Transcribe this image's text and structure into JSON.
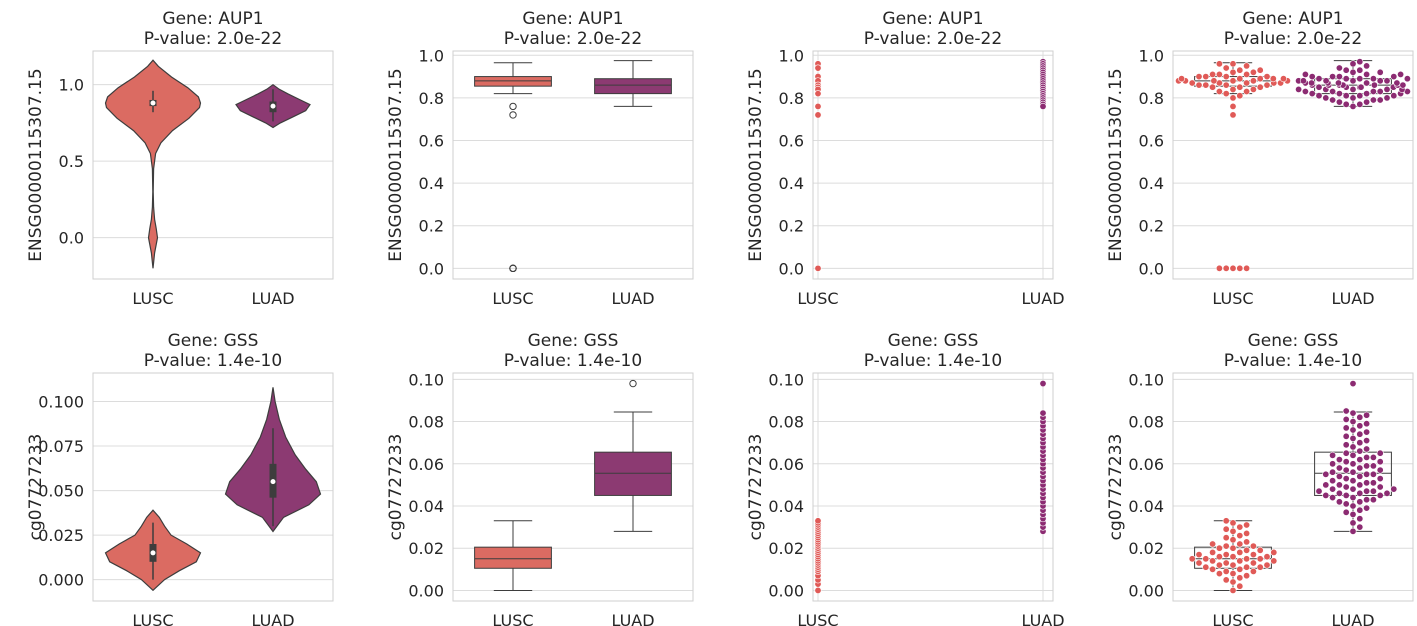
{
  "chart_data": [
    {
      "type": "violin",
      "title": [
        "Gene: AUP1",
        "P-value: 2.0e-22"
      ],
      "ylabel": "ENSG00000115307.15",
      "categories": [
        "LUSC",
        "LUAD"
      ],
      "ylim": [
        -0.27,
        1.22
      ],
      "yticks": [
        0.0,
        0.5,
        1.0
      ],
      "ytick_labels": [
        "0.0",
        "0.5",
        "1.0"
      ],
      "violins": [
        {
          "name": "LUSC",
          "color": "#db6b62",
          "box": [
            0.86,
            0.9
          ],
          "whisker": [
            0.82,
            0.96
          ],
          "median": 0.88,
          "profile": [
            [
              -0.2,
              0.0
            ],
            [
              -0.1,
              0.03
            ],
            [
              0.0,
              0.085
            ],
            [
              0.06,
              0.06
            ],
            [
              0.12,
              0.03
            ],
            [
              0.2,
              0.012
            ],
            [
              0.3,
              0.004
            ],
            [
              0.45,
              0.012
            ],
            [
              0.55,
              0.05
            ],
            [
              0.62,
              0.15
            ],
            [
              0.7,
              0.37
            ],
            [
              0.78,
              0.68
            ],
            [
              0.85,
              0.88
            ],
            [
              0.88,
              0.9
            ],
            [
              0.92,
              0.86
            ],
            [
              0.98,
              0.66
            ],
            [
              1.05,
              0.35
            ],
            [
              1.12,
              0.1
            ],
            [
              1.16,
              0.0
            ]
          ]
        },
        {
          "name": "LUAD",
          "color": "#8c3a72",
          "box": [
            0.82,
            0.89
          ],
          "whisker": [
            0.76,
            0.97
          ],
          "median": 0.86,
          "profile": [
            [
              0.72,
              0.0
            ],
            [
              0.75,
              0.14
            ],
            [
              0.79,
              0.38
            ],
            [
              0.83,
              0.62
            ],
            [
              0.87,
              0.7
            ],
            [
              0.9,
              0.52
            ],
            [
              0.94,
              0.28
            ],
            [
              0.97,
              0.12
            ],
            [
              1.0,
              0.0
            ]
          ]
        }
      ]
    },
    {
      "type": "box",
      "title": [
        "Gene: AUP1",
        "P-value: 2.0e-22"
      ],
      "ylabel": "ENSG00000115307.15",
      "categories": [
        "LUSC",
        "LUAD"
      ],
      "ylim": [
        -0.05,
        1.02
      ],
      "yticks": [
        0.0,
        0.2,
        0.4,
        0.6,
        0.8,
        1.0
      ],
      "ytick_labels": [
        "0.0",
        "0.2",
        "0.4",
        "0.6",
        "0.8",
        "1.0"
      ],
      "boxes": [
        {
          "name": "LUSC",
          "color": "#db6b62",
          "q1": 0.855,
          "median": 0.88,
          "q3": 0.9,
          "whisker": [
            0.82,
            0.965
          ],
          "outliers": [
            0.76,
            0.72,
            0.0,
            0.0,
            0.0
          ]
        },
        {
          "name": "LUAD",
          "color": "#8c3a72",
          "q1": 0.82,
          "median": 0.86,
          "q3": 0.89,
          "whisker": [
            0.76,
            0.975
          ],
          "outliers": []
        }
      ]
    },
    {
      "type": "strip",
      "title": [
        "Gene: AUP1",
        "P-value: 2.0e-22"
      ],
      "ylabel": "ENSG00000115307.15",
      "categories": [
        "LUSC",
        "LUAD"
      ],
      "ylim": [
        -0.05,
        1.02
      ],
      "yticks": [
        0.0,
        0.2,
        0.4,
        0.6,
        0.8,
        1.0
      ],
      "ytick_labels": [
        "0.0",
        "0.2",
        "0.4",
        "0.6",
        "0.8",
        "1.0"
      ],
      "groups": [
        {
          "name": "LUSC",
          "color": "#e05a57",
          "values": [
            0.96,
            0.94,
            0.9,
            0.88,
            0.86,
            0.85,
            0.84,
            0.82,
            0.76,
            0.72,
            0.0
          ]
        },
        {
          "name": "LUAD",
          "color": "#8c2b72",
          "values": [
            0.97,
            0.96,
            0.95,
            0.94,
            0.93,
            0.92,
            0.91,
            0.9,
            0.89,
            0.88,
            0.87,
            0.86,
            0.85,
            0.84,
            0.83,
            0.82,
            0.81,
            0.8,
            0.79,
            0.78,
            0.77,
            0.76
          ]
        }
      ]
    },
    {
      "type": "swarm-box",
      "title": [
        "Gene: AUP1",
        "P-value: 2.0e-22"
      ],
      "ylabel": "ENSG00000115307.15",
      "categories": [
        "LUSC",
        "LUAD"
      ],
      "ylim": [
        -0.05,
        1.02
      ],
      "yticks": [
        0.0,
        0.2,
        0.4,
        0.6,
        0.8,
        1.0
      ],
      "ytick_labels": [
        "0.0",
        "0.2",
        "0.4",
        "0.6",
        "0.8",
        "1.0"
      ],
      "boxes": [
        {
          "name": "LUSC",
          "q1": 0.855,
          "median": 0.88,
          "q3": 0.9,
          "whisker": [
            0.82,
            0.965
          ]
        },
        {
          "name": "LUAD",
          "q1": 0.82,
          "median": 0.86,
          "q3": 0.89,
          "whisker": [
            0.76,
            0.975
          ]
        }
      ],
      "groups": [
        {
          "name": "LUSC",
          "color": "#e05a57",
          "values": [
            0.0,
            0.0,
            0.0,
            0.0,
            0.0,
            0.72,
            0.76,
            0.8,
            0.81,
            0.82,
            0.83,
            0.83,
            0.84,
            0.84,
            0.85,
            0.85,
            0.85,
            0.86,
            0.86,
            0.86,
            0.86,
            0.87,
            0.87,
            0.87,
            0.87,
            0.87,
            0.88,
            0.88,
            0.88,
            0.88,
            0.88,
            0.88,
            0.89,
            0.89,
            0.89,
            0.89,
            0.89,
            0.9,
            0.9,
            0.9,
            0.9,
            0.91,
            0.91,
            0.91,
            0.92,
            0.92,
            0.93,
            0.93,
            0.94,
            0.95,
            0.96,
            0.96
          ]
        },
        {
          "name": "LUAD",
          "color": "#8c2b72",
          "values": [
            0.76,
            0.77,
            0.77,
            0.78,
            0.78,
            0.79,
            0.79,
            0.79,
            0.8,
            0.8,
            0.8,
            0.81,
            0.81,
            0.81,
            0.81,
            0.82,
            0.82,
            0.82,
            0.82,
            0.83,
            0.83,
            0.83,
            0.83,
            0.83,
            0.84,
            0.84,
            0.84,
            0.84,
            0.84,
            0.85,
            0.85,
            0.85,
            0.85,
            0.85,
            0.85,
            0.86,
            0.86,
            0.86,
            0.86,
            0.86,
            0.86,
            0.86,
            0.87,
            0.87,
            0.87,
            0.87,
            0.87,
            0.87,
            0.88,
            0.88,
            0.88,
            0.88,
            0.88,
            0.88,
            0.89,
            0.89,
            0.89,
            0.89,
            0.89,
            0.9,
            0.9,
            0.9,
            0.9,
            0.91,
            0.91,
            0.91,
            0.92,
            0.92,
            0.93,
            0.93,
            0.94,
            0.95,
            0.96,
            0.97
          ]
        }
      ]
    },
    {
      "type": "violin",
      "title": [
        "Gene: GSS",
        "P-value: 1.4e-10"
      ],
      "ylabel": "cg07727233",
      "categories": [
        "LUSC",
        "LUAD"
      ],
      "ylim": [
        -0.012,
        0.116
      ],
      "yticks": [
        0.0,
        0.025,
        0.05,
        0.075,
        0.1
      ],
      "ytick_labels": [
        "0.000",
        "0.025",
        "0.050",
        "0.075",
        "0.100"
      ],
      "violins": [
        {
          "name": "LUSC",
          "color": "#db6b62",
          "box": [
            0.01,
            0.02
          ],
          "whisker": [
            0.0,
            0.032
          ],
          "median": 0.015,
          "profile": [
            [
              -0.006,
              0.0
            ],
            [
              0.0,
              0.22
            ],
            [
              0.005,
              0.5
            ],
            [
              0.01,
              0.82
            ],
            [
              0.015,
              0.9
            ],
            [
              0.02,
              0.64
            ],
            [
              0.025,
              0.34
            ],
            [
              0.03,
              0.22
            ],
            [
              0.035,
              0.12
            ],
            [
              0.039,
              0.0
            ]
          ]
        },
        {
          "name": "LUAD",
          "color": "#8c3a72",
          "box": [
            0.046,
            0.065
          ],
          "whisker": [
            0.03,
            0.085
          ],
          "median": 0.055,
          "profile": [
            [
              0.027,
              0.0
            ],
            [
              0.035,
              0.2
            ],
            [
              0.042,
              0.68
            ],
            [
              0.048,
              0.9
            ],
            [
              0.055,
              0.82
            ],
            [
              0.062,
              0.62
            ],
            [
              0.07,
              0.42
            ],
            [
              0.08,
              0.24
            ],
            [
              0.09,
              0.12
            ],
            [
              0.1,
              0.04
            ],
            [
              0.108,
              0.0
            ]
          ]
        }
      ]
    },
    {
      "type": "box",
      "title": [
        "Gene: GSS",
        "P-value: 1.4e-10"
      ],
      "ylabel": "cg07727233",
      "categories": [
        "LUSC",
        "LUAD"
      ],
      "ylim": [
        -0.005,
        0.103
      ],
      "yticks": [
        0.0,
        0.02,
        0.04,
        0.06,
        0.08,
        0.1
      ],
      "ytick_labels": [
        "0.00",
        "0.02",
        "0.04",
        "0.06",
        "0.08",
        "0.10"
      ],
      "boxes": [
        {
          "name": "LUSC",
          "color": "#db6b62",
          "q1": 0.0105,
          "median": 0.015,
          "q3": 0.0205,
          "whisker": [
            0.0,
            0.033
          ],
          "outliers": []
        },
        {
          "name": "LUAD",
          "color": "#8c3a72",
          "q1": 0.045,
          "median": 0.0555,
          "q3": 0.0655,
          "whisker": [
            0.028,
            0.0845
          ],
          "outliers": [
            0.098
          ]
        }
      ]
    },
    {
      "type": "strip",
      "title": [
        "Gene: GSS",
        "P-value: 1.4e-10"
      ],
      "ylabel": "cg07727233",
      "categories": [
        "LUSC",
        "LUAD"
      ],
      "ylim": [
        -0.005,
        0.103
      ],
      "yticks": [
        0.0,
        0.02,
        0.04,
        0.06,
        0.08,
        0.1
      ],
      "ytick_labels": [
        "0.00",
        "0.02",
        "0.04",
        "0.06",
        "0.08",
        "0.10"
      ],
      "groups": [
        {
          "name": "LUSC",
          "color": "#e05a57",
          "values": [
            0.0,
            0.003,
            0.005,
            0.007,
            0.009,
            0.01,
            0.011,
            0.012,
            0.013,
            0.014,
            0.015,
            0.016,
            0.017,
            0.018,
            0.019,
            0.02,
            0.021,
            0.022,
            0.023,
            0.024,
            0.025,
            0.026,
            0.027,
            0.028,
            0.029,
            0.03,
            0.031,
            0.032,
            0.033
          ]
        },
        {
          "name": "LUAD",
          "color": "#8c2b72",
          "values": [
            0.028,
            0.03,
            0.032,
            0.034,
            0.036,
            0.038,
            0.04,
            0.042,
            0.044,
            0.046,
            0.048,
            0.05,
            0.052,
            0.054,
            0.056,
            0.058,
            0.06,
            0.062,
            0.064,
            0.066,
            0.068,
            0.07,
            0.072,
            0.074,
            0.076,
            0.078,
            0.08,
            0.082,
            0.084,
            0.098
          ]
        }
      ]
    },
    {
      "type": "swarm-box",
      "title": [
        "Gene: GSS",
        "P-value: 1.4e-10"
      ],
      "ylabel": "cg07727233",
      "categories": [
        "LUSC",
        "LUAD"
      ],
      "ylim": [
        -0.005,
        0.103
      ],
      "yticks": [
        0.0,
        0.02,
        0.04,
        0.06,
        0.08,
        0.1
      ],
      "ytick_labels": [
        "0.00",
        "0.02",
        "0.04",
        "0.06",
        "0.08",
        "0.10"
      ],
      "boxes": [
        {
          "name": "LUSC",
          "q1": 0.0105,
          "median": 0.015,
          "q3": 0.0205,
          "whisker": [
            0.0,
            0.033
          ]
        },
        {
          "name": "LUAD",
          "q1": 0.045,
          "median": 0.0555,
          "q3": 0.0655,
          "whisker": [
            0.028,
            0.0845
          ]
        }
      ],
      "groups": [
        {
          "name": "LUSC",
          "color": "#e05a57",
          "values": [
            0.0,
            0.002,
            0.004,
            0.005,
            0.006,
            0.007,
            0.008,
            0.008,
            0.009,
            0.009,
            0.01,
            0.01,
            0.011,
            0.011,
            0.011,
            0.012,
            0.012,
            0.012,
            0.013,
            0.013,
            0.013,
            0.014,
            0.014,
            0.014,
            0.015,
            0.015,
            0.015,
            0.015,
            0.016,
            0.016,
            0.016,
            0.017,
            0.017,
            0.017,
            0.018,
            0.018,
            0.018,
            0.019,
            0.019,
            0.02,
            0.02,
            0.021,
            0.021,
            0.022,
            0.022,
            0.023,
            0.024,
            0.025,
            0.026,
            0.027,
            0.028,
            0.029,
            0.03,
            0.031,
            0.032,
            0.033
          ]
        },
        {
          "name": "LUAD",
          "color": "#8c2b72",
          "values": [
            0.028,
            0.03,
            0.032,
            0.034,
            0.036,
            0.037,
            0.038,
            0.039,
            0.04,
            0.041,
            0.042,
            0.042,
            0.043,
            0.043,
            0.044,
            0.044,
            0.045,
            0.045,
            0.045,
            0.046,
            0.046,
            0.046,
            0.047,
            0.047,
            0.047,
            0.048,
            0.048,
            0.048,
            0.049,
            0.049,
            0.05,
            0.05,
            0.05,
            0.051,
            0.051,
            0.052,
            0.052,
            0.053,
            0.053,
            0.054,
            0.054,
            0.055,
            0.055,
            0.055,
            0.056,
            0.056,
            0.057,
            0.057,
            0.058,
            0.058,
            0.059,
            0.059,
            0.06,
            0.06,
            0.061,
            0.061,
            0.062,
            0.062,
            0.063,
            0.063,
            0.064,
            0.064,
            0.065,
            0.065,
            0.066,
            0.067,
            0.068,
            0.069,
            0.07,
            0.071,
            0.072,
            0.073,
            0.074,
            0.075,
            0.076,
            0.077,
            0.078,
            0.079,
            0.08,
            0.081,
            0.082,
            0.083,
            0.084,
            0.085,
            0.098
          ]
        }
      ]
    }
  ]
}
